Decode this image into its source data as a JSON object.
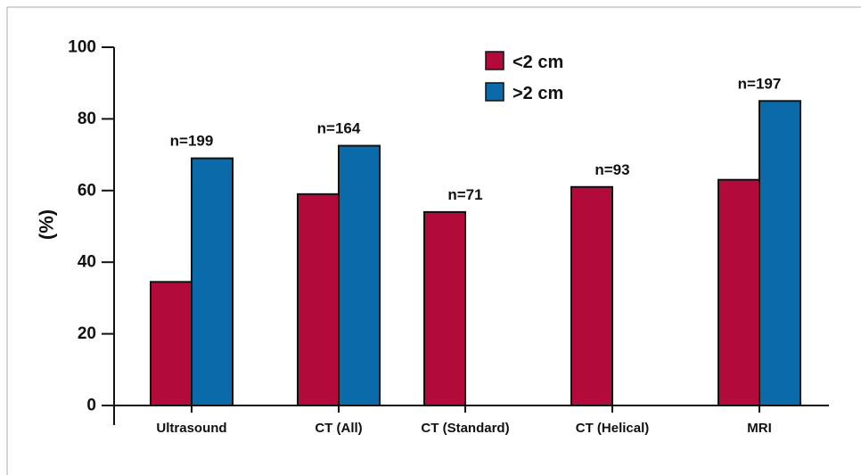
{
  "chart_data": {
    "type": "bar",
    "title": "",
    "xlabel": "",
    "ylabel": "(%)",
    "ylim": [
      0,
      100
    ],
    "yticks": [
      "0",
      "20",
      "40",
      "60",
      "80",
      "100"
    ],
    "categories": [
      "Ultrasound",
      "CT (All)",
      "CT (Standard)",
      "CT (Helical)",
      "MRI"
    ],
    "series": [
      {
        "name": "<2 cm",
        "color": "#b30a3c",
        "values": [
          34.5,
          59,
          54,
          61,
          63
        ]
      },
      {
        "name": ">2 cm",
        "color": "#0a6aaa",
        "values": [
          69,
          72.5,
          null,
          null,
          85
        ]
      }
    ],
    "annotations": [
      "n=199",
      "n=164",
      "n=71",
      "n=93",
      "n=197"
    ],
    "legend": {
      "placement": "top-center"
    },
    "grid": false
  }
}
